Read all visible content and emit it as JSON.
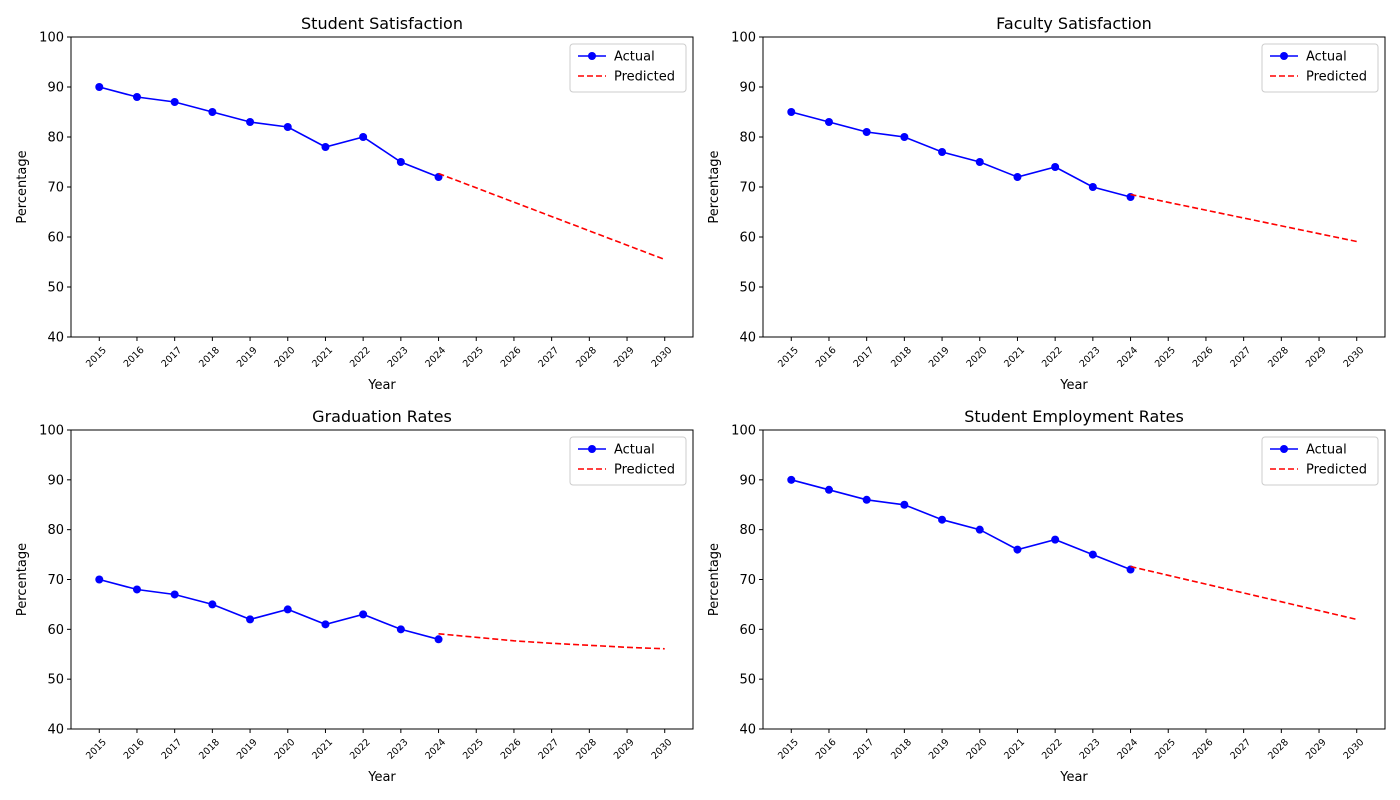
{
  "colors": {
    "actual": "#0000ff",
    "predicted": "#ff0000",
    "frame": "#000000",
    "legend_border": "#cccccc"
  },
  "chart_data": [
    {
      "type": "line",
      "title": "Student Satisfaction",
      "xlabel": "Year",
      "ylabel": "Percentage",
      "ylim": [
        40,
        100
      ],
      "yticks": [
        40,
        50,
        60,
        70,
        80,
        90,
        100
      ],
      "xticks": [
        "2015",
        "2016",
        "2017",
        "2018",
        "2019",
        "2020",
        "2021",
        "2022",
        "2023",
        "2024",
        "2025",
        "2026",
        "2027",
        "2028",
        "2029",
        "2030"
      ],
      "grid": false,
      "legend": "top-right",
      "series": [
        {
          "name": "Actual",
          "style": "solid-markers",
          "x": [
            2015,
            2016,
            2017,
            2018,
            2019,
            2020,
            2021,
            2022,
            2023,
            2024
          ],
          "y": [
            90,
            88,
            87,
            85,
            83,
            82,
            78,
            80,
            75,
            72
          ]
        },
        {
          "name": "Predicted",
          "style": "dashed",
          "x": [
            2024,
            2030
          ],
          "y": [
            72.7,
            55.5
          ]
        }
      ]
    },
    {
      "type": "line",
      "title": "Faculty Satisfaction",
      "xlabel": "Year",
      "ylabel": "Percentage",
      "ylim": [
        40,
        100
      ],
      "yticks": [
        40,
        50,
        60,
        70,
        80,
        90,
        100
      ],
      "xticks": [
        "2015",
        "2016",
        "2017",
        "2018",
        "2019",
        "2020",
        "2021",
        "2022",
        "2023",
        "2024",
        "2025",
        "2026",
        "2027",
        "2028",
        "2029",
        "2030"
      ],
      "grid": false,
      "legend": "top-right",
      "series": [
        {
          "name": "Actual",
          "style": "solid-markers",
          "x": [
            2015,
            2016,
            2017,
            2018,
            2019,
            2020,
            2021,
            2022,
            2023,
            2024
          ],
          "y": [
            85,
            83,
            81,
            80,
            77,
            75,
            72,
            74,
            70,
            68
          ]
        },
        {
          "name": "Predicted",
          "style": "dashed",
          "x": [
            2024,
            2030
          ],
          "y": [
            68.5,
            59.1
          ]
        }
      ]
    },
    {
      "type": "line",
      "title": "Graduation Rates",
      "xlabel": "Year",
      "ylabel": "Percentage",
      "ylim": [
        40,
        100
      ],
      "yticks": [
        40,
        50,
        60,
        70,
        80,
        90,
        100
      ],
      "xticks": [
        "2015",
        "2016",
        "2017",
        "2018",
        "2019",
        "2020",
        "2021",
        "2022",
        "2023",
        "2024",
        "2025",
        "2026",
        "2027",
        "2028",
        "2029",
        "2030"
      ],
      "grid": false,
      "legend": "top-right",
      "series": [
        {
          "name": "Actual",
          "style": "solid-markers",
          "x": [
            2015,
            2016,
            2017,
            2018,
            2019,
            2020,
            2021,
            2022,
            2023,
            2024
          ],
          "y": [
            70,
            68,
            67,
            65,
            62,
            64,
            61,
            63,
            60,
            58
          ]
        },
        {
          "name": "Predicted",
          "style": "dashed",
          "x": [
            2024,
            2025,
            2026,
            2027,
            2028,
            2029,
            2030
          ],
          "y": [
            59.1,
            58.4,
            57.7,
            57.2,
            56.8,
            56.4,
            56.1
          ]
        }
      ]
    },
    {
      "type": "line",
      "title": "Student Employment Rates",
      "xlabel": "Year",
      "ylabel": "Percentage",
      "ylim": [
        40,
        100
      ],
      "yticks": [
        40,
        50,
        60,
        70,
        80,
        90,
        100
      ],
      "xticks": [
        "2015",
        "2016",
        "2017",
        "2018",
        "2019",
        "2020",
        "2021",
        "2022",
        "2023",
        "2024",
        "2025",
        "2026",
        "2027",
        "2028",
        "2029",
        "2030"
      ],
      "grid": false,
      "legend": "top-right",
      "series": [
        {
          "name": "Actual",
          "style": "solid-markers",
          "x": [
            2015,
            2016,
            2017,
            2018,
            2019,
            2020,
            2021,
            2022,
            2023,
            2024
          ],
          "y": [
            90,
            88,
            86,
            85,
            82,
            80,
            76,
            78,
            75,
            72
          ]
        },
        {
          "name": "Predicted",
          "style": "dashed",
          "x": [
            2024,
            2030
          ],
          "y": [
            72.6,
            62.0
          ]
        }
      ]
    }
  ]
}
